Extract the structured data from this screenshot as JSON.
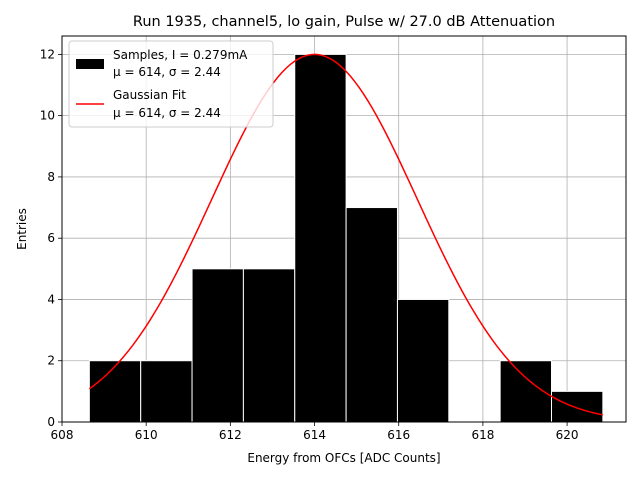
{
  "chart_data": {
    "type": "bar",
    "title": "Run 1935, channel5, lo gain, Pulse w/ 27.0 dB Attenuation",
    "xlabel": "Energy from OFCs [ADC Counts]",
    "ylabel": "Entries",
    "xlim": [
      608,
      621.4
    ],
    "ylim": [
      0,
      12.6
    ],
    "xticks": [
      608,
      610,
      612,
      614,
      616,
      618,
      620
    ],
    "yticks": [
      0,
      2,
      4,
      6,
      8,
      10,
      12
    ],
    "grid": true,
    "legend_location": "top-left",
    "bins": [
      {
        "x0": 608.65,
        "x1": 609.87,
        "count": 2
      },
      {
        "x0": 609.87,
        "x1": 611.09,
        "count": 2
      },
      {
        "x0": 611.09,
        "x1": 612.31,
        "count": 5
      },
      {
        "x0": 612.31,
        "x1": 613.53,
        "count": 5
      },
      {
        "x0": 613.53,
        "x1": 614.75,
        "count": 12
      },
      {
        "x0": 614.75,
        "x1": 615.97,
        "count": 7
      },
      {
        "x0": 615.97,
        "x1": 617.19,
        "count": 4
      },
      {
        "x0": 617.19,
        "x1": 618.41,
        "count": 0
      },
      {
        "x0": 618.41,
        "x1": 619.63,
        "count": 2
      },
      {
        "x0": 619.63,
        "x1": 620.85,
        "count": 1
      }
    ],
    "series": [
      {
        "name": "Samples, I = 0.279mA",
        "stats_label": "μ = 614, σ = 2.44",
        "kind": "histogram",
        "color": "#000000",
        "edge_color": "#ffffff"
      },
      {
        "name": "Gaussian Fit",
        "stats_label": "μ = 614, σ = 2.44",
        "kind": "line",
        "color": "#ff0000",
        "amplitude": 12,
        "mu": 614,
        "sigma": 2.44,
        "x_range": [
          608.65,
          620.85
        ]
      }
    ]
  }
}
